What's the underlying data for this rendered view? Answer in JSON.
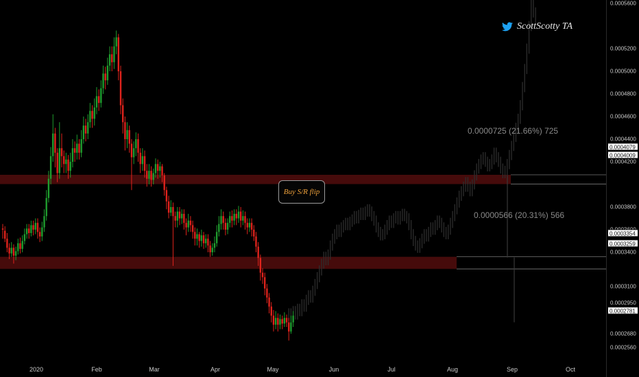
{
  "watermark": {
    "author": "ScottScotty TA",
    "icon": "twitter-bird-icon"
  },
  "annotations": {
    "callout": "Buy S/R flip",
    "measure_upper": "0.0000725 (21.66%) 725",
    "measure_lower": "0.0000566 (20.31%) 566"
  },
  "colors": {
    "up": "#1f9d2e",
    "down": "#e0231c",
    "zone": "#4a0c0c",
    "projection": "#2e2e2e"
  },
  "chart_data": {
    "type": "candlestick",
    "x_ticks": [
      "2020",
      "Feb",
      "Mar",
      "Apr",
      "May",
      "Jun",
      "Jul",
      "Aug",
      "Sep",
      "Oct"
    ],
    "y_ticks": [
      "0.0005600",
      "0.0005200",
      "0.0005000",
      "0.0004800",
      "0.0004600",
      "0.0004400",
      "0.0004200",
      "0.0003800",
      "0.0003600",
      "0.0003400",
      "0.0003100",
      "0.0002950",
      "0.0002680",
      "0.0002560"
    ],
    "price_tags": [
      "0.0004079",
      "0.0004009",
      "0.0003354",
      "0.0003259",
      "0.0002781"
    ],
    "zones": [
      {
        "top": 0.0004079,
        "bottom": 0.0004009
      },
      {
        "top": 0.0003354,
        "bottom": 0.0003259
      }
    ],
    "actual_candles": [
      [
        0.000361,
        0.00036,
        0.000365,
        0.000352
      ],
      [
        0.000359,
        0.000352,
        0.000363,
        0.000349
      ],
      [
        0.000352,
        0.000344,
        0.000357,
        0.00034
      ],
      [
        0.000344,
        0.000339,
        0.000348,
        0.000334
      ],
      [
        0.000339,
        0.000344,
        0.000349,
        0.000336
      ],
      [
        0.000344,
        0.000337,
        0.000347,
        0.00033
      ],
      [
        0.000337,
        0.000341,
        0.000345,
        0.000333
      ],
      [
        0.000341,
        0.000348,
        0.000352,
        0.000338
      ],
      [
        0.000348,
        0.000343,
        0.000353,
        0.000339
      ],
      [
        0.000343,
        0.00035,
        0.000355,
        0.00034
      ],
      [
        0.00035,
        0.000356,
        0.000361,
        0.000347
      ],
      [
        0.000356,
        0.000361,
        0.000365,
        0.000352
      ],
      [
        0.000361,
        0.000357,
        0.000365,
        0.000352
      ],
      [
        0.000357,
        0.000364,
        0.000368,
        0.000354
      ],
      [
        0.000364,
        0.00036,
        0.000368,
        0.000355
      ],
      [
        0.00036,
        0.000366,
        0.00037,
        0.000356
      ],
      [
        0.000366,
        0.000358,
        0.00037,
        0.000352
      ],
      [
        0.000358,
        0.000354,
        0.000362,
        0.000349
      ],
      [
        0.000354,
        0.000362,
        0.000367,
        0.00035
      ],
      [
        0.000362,
        0.000372,
        0.000378,
        0.000358
      ],
      [
        0.000372,
        0.000388,
        0.000395,
        0.000368
      ],
      [
        0.000388,
        0.000405,
        0.000412,
        0.000384
      ],
      [
        0.000405,
        0.000425,
        0.000433,
        0.0004
      ],
      [
        0.000425,
        0.000445,
        0.000462,
        0.00042
      ],
      [
        0.000445,
        0.000428,
        0.00045,
        0.000415
      ],
      [
        0.000428,
        0.00041,
        0.000432,
        0.000402
      ],
      [
        0.00041,
        0.000432,
        0.000455,
        0.000405
      ],
      [
        0.000432,
        0.000425,
        0.000445,
        0.000415
      ],
      [
        0.000425,
        0.000418,
        0.00043,
        0.00041
      ],
      [
        0.000418,
        0.000422,
        0.000428,
        0.00041
      ],
      [
        0.000422,
        0.000412,
        0.000426,
        0.000405
      ],
      [
        0.000412,
        0.00042,
        0.000428,
        0.000406
      ],
      [
        0.00042,
        0.000432,
        0.00044,
        0.000415
      ],
      [
        0.000432,
        0.000428,
        0.000438,
        0.00042
      ],
      [
        0.000428,
        0.000436,
        0.000444,
        0.000422
      ],
      [
        0.000436,
        0.000428,
        0.00044,
        0.000422
      ],
      [
        0.000428,
        0.00044,
        0.000448,
        0.000424
      ],
      [
        0.00044,
        0.000452,
        0.00046,
        0.000436
      ],
      [
        0.000452,
        0.000445,
        0.000458,
        0.000438
      ],
      [
        0.000445,
        0.000455,
        0.000462,
        0.00044
      ],
      [
        0.000455,
        0.000465,
        0.000472,
        0.00045
      ],
      [
        0.000465,
        0.000458,
        0.00047,
        0.00045
      ],
      [
        0.000458,
        0.000468,
        0.000476,
        0.000452
      ],
      [
        0.000468,
        0.000478,
        0.000486,
        0.000462
      ],
      [
        0.000478,
        0.000472,
        0.000484,
        0.000465
      ],
      [
        0.000472,
        0.000485,
        0.000492,
        0.000468
      ],
      [
        0.000485,
        0.000498,
        0.000505,
        0.00048
      ],
      [
        0.000498,
        0.000492,
        0.000504,
        0.000484
      ],
      [
        0.000492,
        0.000505,
        0.000512,
        0.000488
      ],
      [
        0.000505,
        0.000515,
        0.000522,
        0.0005
      ],
      [
        0.000515,
        0.000508,
        0.000522,
        0.0005
      ],
      [
        0.000508,
        0.000522,
        0.00053,
        0.000502
      ],
      [
        0.000522,
        0.00053,
        0.000536,
        0.000515
      ],
      [
        0.00053,
        0.0005,
        0.000533,
        0.000492
      ],
      [
        0.0005,
        0.00047,
        0.000505,
        0.000462
      ],
      [
        0.00047,
        0.000455,
        0.000476,
        0.000445
      ],
      [
        0.000455,
        0.00044,
        0.00046,
        0.00043
      ],
      [
        0.00044,
        0.000448,
        0.000455,
        0.000432
      ],
      [
        0.000448,
        0.000436,
        0.000452,
        0.000428
      ],
      [
        0.000436,
        0.000424,
        0.00044,
        0.000395
      ],
      [
        0.000424,
        0.000432,
        0.000438,
        0.000418
      ],
      [
        0.000432,
        0.00044,
        0.000446,
        0.000425
      ],
      [
        0.00044,
        0.000428,
        0.000445,
        0.00042
      ],
      [
        0.000428,
        0.000418,
        0.000432,
        0.00041
      ],
      [
        0.000418,
        0.000425,
        0.000432,
        0.000412
      ],
      [
        0.000425,
        0.000412,
        0.00043,
        0.000406
      ],
      [
        0.000412,
        0.000405,
        0.000418,
        0.000398
      ],
      [
        0.000405,
        0.000412,
        0.000418,
        0.0004
      ],
      [
        0.000412,
        0.000404,
        0.000416,
        0.000398
      ],
      [
        0.000404,
        0.00041,
        0.000414,
        0.0004
      ],
      [
        0.00041,
        0.000418,
        0.000423,
        0.000406
      ],
      [
        0.000418,
        0.000412,
        0.000422,
        0.000405
      ],
      [
        0.000412,
        0.000416,
        0.00042,
        0.000406
      ],
      [
        0.000416,
        0.000408,
        0.000418,
        0.000402
      ],
      [
        0.000408,
        0.000395,
        0.00041,
        0.00039
      ],
      [
        0.000395,
        0.000385,
        0.000398,
        0.000378
      ],
      [
        0.000385,
        0.000375,
        0.00039,
        0.00037
      ],
      [
        0.000375,
        0.00038,
        0.000386,
        0.000372
      ],
      [
        0.00038,
        0.000372,
        0.000384,
        0.000328
      ],
      [
        0.000372,
        0.000368,
        0.000376,
        0.000362
      ],
      [
        0.000368,
        0.000376,
        0.00038,
        0.000362
      ],
      [
        0.000376,
        0.00037,
        0.00038,
        0.000364
      ],
      [
        0.00037,
        0.000374,
        0.000378,
        0.000365
      ],
      [
        0.000374,
        0.000366,
        0.000378,
        0.00036
      ],
      [
        0.000366,
        0.000362,
        0.00037,
        0.000355
      ],
      [
        0.000362,
        0.000368,
        0.000374,
        0.000358
      ],
      [
        0.000368,
        0.000364,
        0.000372,
        0.000358
      ],
      [
        0.000364,
        0.000358,
        0.000368,
        0.000352
      ],
      [
        0.000358,
        0.000352,
        0.000362,
        0.000346
      ],
      [
        0.000352,
        0.000356,
        0.000361,
        0.000346
      ],
      [
        0.000356,
        0.00035,
        0.000358,
        0.000344
      ],
      [
        0.00035,
        0.000355,
        0.00036,
        0.000345
      ],
      [
        0.000355,
        0.000348,
        0.000358,
        0.000343
      ],
      [
        0.000348,
        0.000352,
        0.000356,
        0.000344
      ],
      [
        0.000352,
        0.000346,
        0.000356,
        0.00034
      ],
      [
        0.000346,
        0.00034,
        0.00035,
        0.000336
      ],
      [
        0.00034,
        0.000344,
        0.000348,
        0.000337
      ],
      [
        0.000344,
        0.000348,
        0.000354,
        0.00034
      ],
      [
        0.000348,
        0.000358,
        0.000364,
        0.000345
      ],
      [
        0.000358,
        0.000365,
        0.000372,
        0.000354
      ],
      [
        0.000365,
        0.000372,
        0.000378,
        0.00036
      ],
      [
        0.000372,
        0.000366,
        0.000376,
        0.00036
      ],
      [
        0.000366,
        0.00036,
        0.00037,
        0.000355
      ],
      [
        0.00036,
        0.000366,
        0.00037,
        0.000356
      ],
      [
        0.000366,
        0.000372,
        0.000376,
        0.000362
      ],
      [
        0.000372,
        0.000368,
        0.000377,
        0.000362
      ],
      [
        0.000368,
        0.000374,
        0.000378,
        0.000364
      ],
      [
        0.000374,
        0.00037,
        0.000378,
        0.000364
      ],
      [
        0.00037,
        0.000376,
        0.000381,
        0.000366
      ],
      [
        0.000376,
        0.000368,
        0.00038,
        0.000362
      ],
      [
        0.000368,
        0.000372,
        0.000377,
        0.000364
      ],
      [
        0.000372,
        0.000366,
        0.000376,
        0.00036
      ],
      [
        0.000366,
        0.000362,
        0.00037,
        0.000356
      ],
      [
        0.000362,
        0.000366,
        0.00037,
        0.000358
      ],
      [
        0.000366,
        0.00036,
        0.00037,
        0.000354
      ],
      [
        0.00036,
        0.000354,
        0.000364,
        0.00035
      ],
      [
        0.000354,
        0.000345,
        0.000358,
        0.00034
      ],
      [
        0.000345,
        0.000335,
        0.000349,
        0.000328
      ],
      [
        0.000335,
        0.000322,
        0.000338,
        0.000315
      ],
      [
        0.000322,
        0.000318,
        0.000326,
        0.000312
      ],
      [
        0.000318,
        0.000308,
        0.000322,
        0.000302
      ],
      [
        0.000308,
        0.0003,
        0.000312,
        0.000295
      ],
      [
        0.0003,
        0.000292,
        0.000304,
        0.000286
      ],
      [
        0.000292,
        0.000284,
        0.000296,
        0.000278
      ],
      [
        0.000284,
        0.000276,
        0.000289,
        0.00027
      ],
      [
        0.000276,
        0.000282,
        0.000288,
        0.000272
      ],
      [
        0.000282,
        0.000276,
        0.000286,
        0.00027
      ],
      [
        0.000276,
        0.000281,
        0.000285,
        0.000272
      ],
      [
        0.000281,
        0.000277,
        0.000284,
        0.000272
      ],
      [
        0.000277,
        0.000282,
        0.000287,
        0.000274
      ],
      [
        0.000282,
        0.000278,
        0.000285,
        0.000274
      ],
      [
        0.000278,
        0.00027,
        0.000282,
        0.000262
      ],
      [
        0.00027,
        0.000278,
        0.000284,
        0.000268
      ],
      [
        0.000278,
        0.000284,
        0.000288,
        0.000274
      ]
    ],
    "projection": {
      "start_index": 130,
      "path": [
        0.000284,
        0.000286,
        0.000283,
        0.000288,
        0.000285,
        0.00029,
        0.000288,
        0.000294,
        0.000292,
        0.000298,
        0.000302,
        0.0003,
        0.000306,
        0.000312,
        0.000318,
        0.000324,
        0.00033,
        0.000336,
        0.000333,
        0.000338,
        0.000346,
        0.000352,
        0.000356,
        0.00036,
        0.000358,
        0.000362,
        0.000364,
        0.000366,
        0.000364,
        0.000367,
        0.000369,
        0.000372,
        0.00037,
        0.000373,
        0.000375,
        0.000373,
        0.000376,
        0.000378,
        0.000376,
        0.000372,
        0.000368,
        0.000362,
        0.000358,
        0.000355,
        0.000356,
        0.00036,
        0.000364,
        0.000368,
        0.000366,
        0.00037,
        0.000372,
        0.000369,
        0.000372,
        0.000374,
        0.000372,
        0.00037,
        0.000364,
        0.000356,
        0.00035,
        0.000346,
        0.000344,
        0.000348,
        0.000352,
        0.000356,
        0.000354,
        0.000358,
        0.000362,
        0.00036,
        0.000364,
        0.000368,
        0.000366,
        0.000362,
        0.000358,
        0.000356,
        0.00036,
        0.000366,
        0.000372,
        0.000378,
        0.000384,
        0.00039,
        0.000394,
        0.000398,
        0.000402,
        0.000398,
        0.000394,
        0.0004,
        0.000408,
        0.000414,
        0.000418,
        0.000422,
        0.000424,
        0.00042,
        0.000416,
        0.000418,
        0.000422,
        0.000428,
        0.000424,
        0.00042,
        0.000414,
        0.00041,
        0.000412,
        0.000418,
        0.000426,
        0.000434,
        0.000442,
        0.00045,
        0.000458,
        0.00047,
        0.000486,
        0.000502,
        0.00052,
        0.00054,
        0.00056,
        0.000552,
        0.000546
      ]
    }
  }
}
